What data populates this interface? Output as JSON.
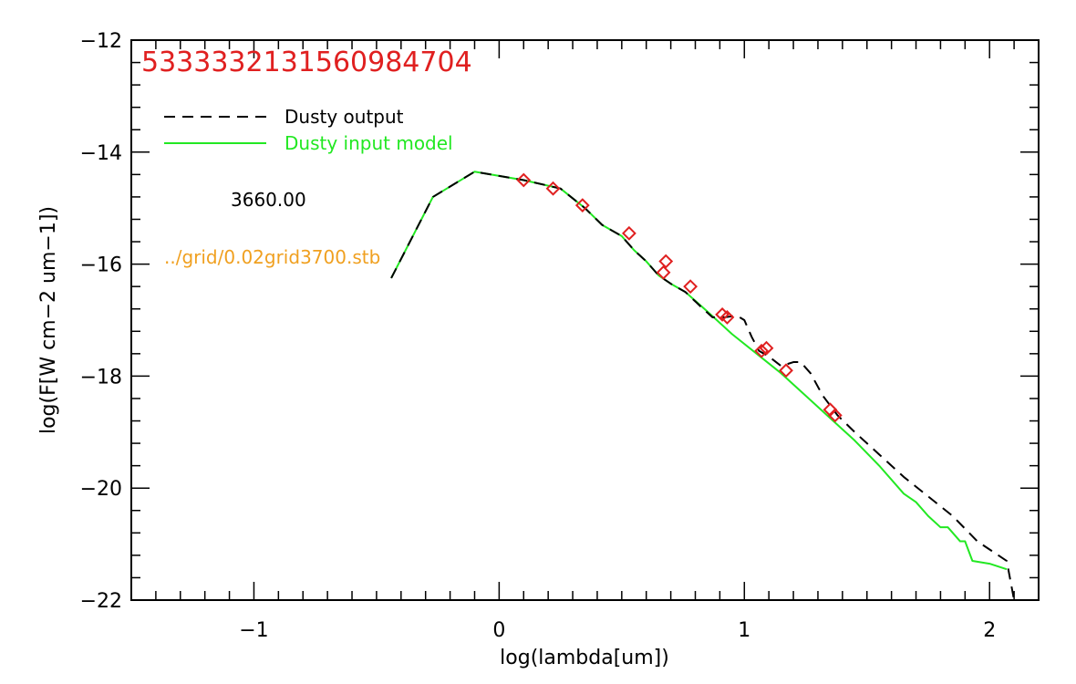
{
  "chart_data": {
    "type": "line",
    "title": "5333332131560984704",
    "xlabel": "log(lambda[um])",
    "ylabel": "log(F[W cm−2 um−1])",
    "xlim": [
      -1.5,
      2.2
    ],
    "ylim": [
      -22,
      -12
    ],
    "x_ticks": [
      {
        "value": -1,
        "label": "−1"
      },
      {
        "value": 0,
        "label": "0"
      },
      {
        "value": 1,
        "label": "1"
      },
      {
        "value": 2,
        "label": "2"
      }
    ],
    "x_minor_step": 0.1,
    "y_ticks": [
      {
        "value": -22,
        "label": "−22"
      },
      {
        "value": -20,
        "label": "−20"
      },
      {
        "value": -18,
        "label": "−18"
      },
      {
        "value": -16,
        "label": "−16"
      },
      {
        "value": -14,
        "label": "−14"
      },
      {
        "value": -12,
        "label": "−12"
      }
    ],
    "y_minor_step": 0.4,
    "grid": false,
    "legend_position": "top-left",
    "annotations": [
      {
        "text": "3660.00",
        "color": "#000000"
      },
      {
        "text": "../grid/0.02grid3700.stb",
        "color": "#f0a020"
      }
    ],
    "series": [
      {
        "name": "Dusty output",
        "style": "dashed",
        "color": "#000000",
        "x": [
          -0.44,
          -0.27,
          -0.1,
          0.1,
          0.25,
          0.35,
          0.42,
          0.5,
          0.55,
          0.6,
          0.65,
          0.7,
          0.76,
          0.82,
          0.87,
          0.92,
          0.97,
          1.0,
          1.03,
          1.06,
          1.1,
          1.15,
          1.2,
          1.23,
          1.27,
          1.32,
          1.38,
          1.45,
          1.55,
          1.65,
          1.75,
          1.85,
          1.95,
          2.07,
          2.1
        ],
        "y": [
          -16.25,
          -14.8,
          -14.35,
          -14.5,
          -14.65,
          -15.0,
          -15.3,
          -15.5,
          -15.75,
          -15.95,
          -16.2,
          -16.35,
          -16.5,
          -16.75,
          -16.95,
          -16.95,
          -16.92,
          -17.0,
          -17.3,
          -17.55,
          -17.65,
          -17.82,
          -17.75,
          -17.75,
          -17.95,
          -18.35,
          -18.7,
          -19.0,
          -19.4,
          -19.8,
          -20.15,
          -20.5,
          -20.95,
          -21.3,
          -22.0
        ]
      },
      {
        "name": "Dusty input model",
        "style": "solid",
        "color": "#22e822",
        "x": [
          -0.44,
          -0.27,
          -0.1,
          0.1,
          0.25,
          0.35,
          0.42,
          0.5,
          0.55,
          0.6,
          0.65,
          0.7,
          0.76,
          0.85,
          0.95,
          1.05,
          1.15,
          1.25,
          1.35,
          1.45,
          1.55,
          1.65,
          1.7,
          1.75,
          1.8,
          1.83,
          1.85,
          1.88,
          1.9,
          1.93,
          2.0,
          2.07
        ],
        "y": [
          -16.25,
          -14.8,
          -14.35,
          -14.5,
          -14.65,
          -15.0,
          -15.3,
          -15.5,
          -15.75,
          -15.95,
          -16.2,
          -16.35,
          -16.5,
          -16.85,
          -17.25,
          -17.6,
          -17.95,
          -18.35,
          -18.75,
          -19.15,
          -19.6,
          -20.1,
          -20.25,
          -20.5,
          -20.7,
          -20.7,
          -20.8,
          -20.95,
          -20.95,
          -21.3,
          -21.35,
          -21.45
        ]
      },
      {
        "name": "",
        "style": "markers",
        "marker": "diamond",
        "color": "#e02020",
        "x": [
          0.1,
          0.22,
          0.34,
          0.53,
          0.67,
          0.68,
          0.78,
          0.91,
          0.93,
          1.07,
          1.09,
          1.17,
          1.35,
          1.37
        ],
        "y": [
          -14.5,
          -14.65,
          -14.95,
          -15.45,
          -16.15,
          -15.95,
          -16.4,
          -16.9,
          -16.95,
          -17.55,
          -17.5,
          -17.9,
          -18.6,
          -18.7
        ]
      }
    ]
  }
}
